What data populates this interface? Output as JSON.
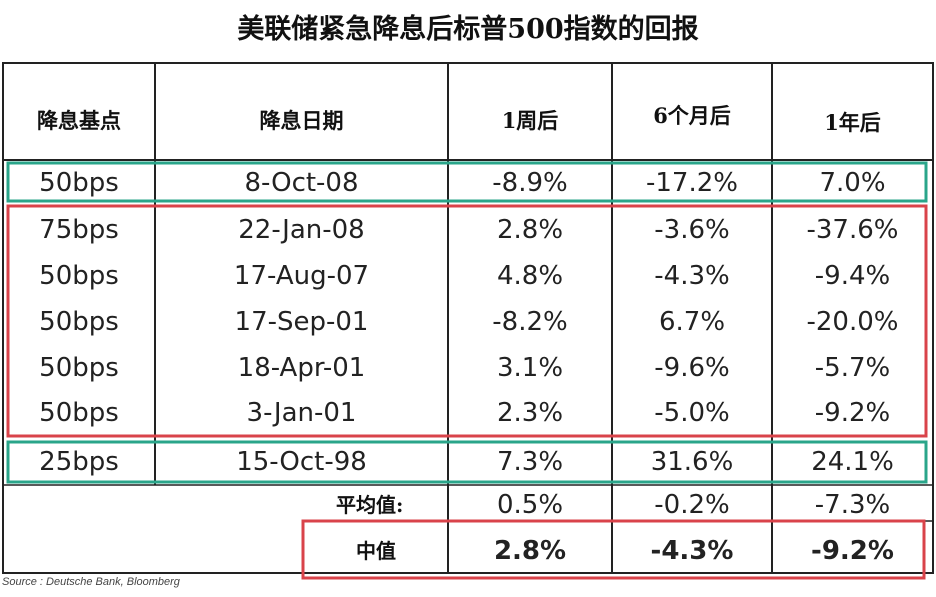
{
  "title": "美联储紧急降息后标普500指数的回报",
  "columns": [
    "降息基点",
    "降息日期",
    "1周后",
    "6个月后",
    "1年后"
  ],
  "rows": [
    {
      "bps": "50bps",
      "date": "8-Oct-08",
      "w1": "-8.9%",
      "m6": "-17.2%",
      "y1": "7.0%"
    },
    {
      "bps": "75bps",
      "date": "22-Jan-08",
      "w1": "2.8%",
      "m6": "-3.6%",
      "y1": "-37.6%"
    },
    {
      "bps": "50bps",
      "date": "17-Aug-07",
      "w1": "4.8%",
      "m6": "-4.3%",
      "y1": "-9.4%"
    },
    {
      "bps": "50bps",
      "date": "17-Sep-01",
      "w1": "-8.2%",
      "m6": "6.7%",
      "y1": "-20.0%"
    },
    {
      "bps": "50bps",
      "date": "18-Apr-01",
      "w1": "3.1%",
      "m6": "-9.6%",
      "y1": "-5.7%"
    },
    {
      "bps": "50bps",
      "date": "3-Jan-01",
      "w1": "2.3%",
      "m6": "-5.0%",
      "y1": "-9.2%"
    },
    {
      "bps": "25bps",
      "date": "15-Oct-98",
      "w1": "7.3%",
      "m6": "31.6%",
      "y1": "24.1%"
    }
  ],
  "average": {
    "label": "平均值:",
    "w1": "0.5%",
    "m6": "-0.2%",
    "y1": "-7.3%"
  },
  "median": {
    "label": "中值",
    "w1": "2.8%",
    "m6": "-4.3%",
    "y1": "-9.2%"
  },
  "source": "Source : Deutsche Bank, Bloomberg",
  "colors": {
    "teal_highlight": "#2aa58a",
    "red_highlight": "#d9434a",
    "grid_line": "#222222"
  }
}
